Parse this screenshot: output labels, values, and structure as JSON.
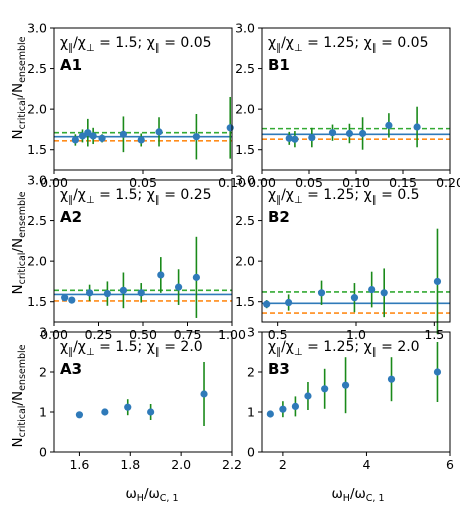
{
  "figure": {
    "ylabel": {
      "main": "N",
      "sub1": "critical",
      "slash": "/N",
      "sub2": "ensemble"
    },
    "xlabel": {
      "main": "ω",
      "sub1": "H",
      "slash": "/ω",
      "sub2": "C, 1"
    }
  },
  "colors": {
    "marker": "#2f7ab9",
    "errorbar": "#1a8a1a",
    "green_line": "#33aa33",
    "orange_line": "#ff8c1a",
    "blue_line": "#2f7ab9"
  },
  "chart_data": [
    {
      "id": "A1",
      "type": "scatter",
      "label": "A1",
      "annotation": {
        "r1": "χ",
        "r1s": "∥",
        "r2": "/χ",
        "r2s": "⊥",
        "r3": " = 1.5; χ",
        "r3s": "∥",
        "r4": " = 0.05"
      },
      "xlim": [
        0,
        0.1
      ],
      "ylim": [
        1.25,
        3.0
      ],
      "xticks": [
        "0.00",
        "0.05",
        "0.10"
      ],
      "xtick_values": [
        0,
        0.05,
        0.1
      ],
      "yticks": [
        "1.5",
        "2.0",
        "2.5",
        "3.0"
      ],
      "ytick_values": [
        1.5,
        2.0,
        2.5,
        3.0
      ],
      "x": [
        0.012,
        0.016,
        0.019,
        0.022,
        0.027,
        0.039,
        0.049,
        0.059,
        0.08,
        0.099
      ],
      "y": [
        1.62,
        1.67,
        1.71,
        1.67,
        1.64,
        1.69,
        1.62,
        1.72,
        1.66,
        1.77
      ],
      "err": [
        0.07,
        0.08,
        0.17,
        0.1,
        0.05,
        0.22,
        0.08,
        0.18,
        0.28,
        0.38
      ],
      "hlines": {
        "green": 1.71,
        "blue": 1.66,
        "orange": 1.61
      }
    },
    {
      "id": "B1",
      "type": "scatter",
      "label": "B1",
      "annotation": {
        "r1": "χ",
        "r1s": "∥",
        "r2": "/χ",
        "r2s": "⊥",
        "r3": " = 1.25; χ",
        "r3s": "∥",
        "r4": " = 0.05"
      },
      "xlim": [
        0,
        0.2
      ],
      "ylim": [
        1.25,
        3.0
      ],
      "xticks": [
        "0.00",
        "0.05",
        "0.10",
        "0.15",
        "0.20"
      ],
      "xtick_values": [
        0,
        0.05,
        0.1,
        0.15,
        0.2
      ],
      "yticks": [
        "1.5",
        "2.0",
        "2.5",
        "3.0"
      ],
      "ytick_values": [
        1.5,
        2.0,
        2.5,
        3.0
      ],
      "x": [
        0.029,
        0.035,
        0.053,
        0.075,
        0.093,
        0.107,
        0.135,
        0.165
      ],
      "y": [
        1.64,
        1.63,
        1.65,
        1.71,
        1.7,
        1.7,
        1.8,
        1.78
      ],
      "err": [
        0.08,
        0.1,
        0.12,
        0.1,
        0.12,
        0.2,
        0.15,
        0.25
      ],
      "hlines": {
        "green": 1.76,
        "blue": 1.69,
        "orange": 1.63
      }
    },
    {
      "id": "A2",
      "type": "scatter",
      "label": "A2",
      "annotation": {
        "r1": "χ",
        "r1s": "∥",
        "r2": "/χ",
        "r2s": "⊥",
        "r3": " = 1.5; χ",
        "r3s": "∥",
        "r4": " = 0.25"
      },
      "xlim": [
        0,
        1.0
      ],
      "ylim": [
        1.25,
        3.0
      ],
      "xticks": [
        "0.00",
        "0.25",
        "0.50",
        "0.75",
        "1.00"
      ],
      "xtick_values": [
        0,
        0.25,
        0.5,
        0.75,
        1.0
      ],
      "yticks": [
        "1.5",
        "2.0",
        "2.5",
        "3.0"
      ],
      "ytick_values": [
        1.5,
        2.0,
        2.5,
        3.0
      ],
      "x": [
        0.06,
        0.1,
        0.2,
        0.3,
        0.39,
        0.49,
        0.6,
        0.7,
        0.8
      ],
      "y": [
        1.55,
        1.52,
        1.61,
        1.6,
        1.64,
        1.61,
        1.83,
        1.68,
        1.8
      ],
      "err": [
        0.03,
        0.02,
        0.1,
        0.15,
        0.22,
        0.12,
        0.22,
        0.22,
        0.5
      ],
      "hlines": {
        "green": 1.64,
        "blue": 1.59,
        "orange": 1.51
      }
    },
    {
      "id": "B2",
      "type": "scatter",
      "label": "B2",
      "annotation": {
        "r1": "χ",
        "r1s": "∥",
        "r2": "/χ",
        "r2s": "⊥",
        "r3": " = 1.25; χ",
        "r3s": "∥",
        "r4": " = 0.5"
      },
      "xlim": [
        0.4,
        1.6
      ],
      "ylim": [
        1.25,
        3.0
      ],
      "xticks": [
        "0.5",
        "1.0",
        "1.5"
      ],
      "xtick_values": [
        0.5,
        1.0,
        1.5
      ],
      "yticks": [
        "1.5",
        "2.0",
        "2.5",
        "3.0"
      ],
      "ytick_values": [
        1.5,
        2.0,
        2.5,
        3.0
      ],
      "x": [
        0.43,
        0.57,
        0.78,
        0.99,
        1.1,
        1.18,
        1.52
      ],
      "y": [
        1.47,
        1.49,
        1.61,
        1.55,
        1.65,
        1.61,
        1.75
      ],
      "err": [
        0.05,
        0.1,
        0.15,
        0.18,
        0.22,
        0.3,
        0.65
      ],
      "hlines": {
        "green": 1.62,
        "blue": 1.48,
        "orange": 1.36
      }
    },
    {
      "id": "A3",
      "type": "scatter",
      "label": "A3",
      "annotation": {
        "r1": "χ",
        "r1s": "∥",
        "r2": "/χ",
        "r2s": "⊥",
        "r3": " = 1.5; χ",
        "r3s": "∥",
        "r4": " = 2.0"
      },
      "xlim": [
        1.5,
        2.2
      ],
      "ylim": [
        0,
        3.0
      ],
      "xticks": [
        "1.6",
        "1.8",
        "2.0",
        "2.2"
      ],
      "xtick_values": [
        1.6,
        1.8,
        2.0,
        2.2
      ],
      "yticks": [
        "0",
        "1",
        "2",
        "3"
      ],
      "ytick_values": [
        0,
        1,
        2,
        3
      ],
      "x": [
        1.6,
        1.7,
        1.79,
        1.88,
        2.09
      ],
      "y": [
        0.93,
        1.0,
        1.12,
        1.0,
        1.45
      ],
      "err": [
        0.0,
        0.0,
        0.2,
        0.2,
        0.8
      ],
      "hlines": null
    },
    {
      "id": "B3",
      "type": "scatter",
      "label": "B3",
      "annotation": {
        "r1": "χ",
        "r1s": "∥",
        "r2": "/χ",
        "r2s": "⊥",
        "r3": " = 1.25; χ",
        "r3s": "∥",
        "r4": " = 2.0"
      },
      "xlim": [
        1.5,
        6.0
      ],
      "ylim": [
        0,
        3.0
      ],
      "xticks": [
        "2",
        "4",
        "6"
      ],
      "xtick_values": [
        2,
        4,
        6
      ],
      "yticks": [
        "0",
        "1",
        "2",
        "3"
      ],
      "ytick_values": [
        0,
        1,
        2,
        3
      ],
      "x": [
        1.7,
        2.0,
        2.3,
        2.6,
        3.0,
        3.5,
        4.6,
        5.7
      ],
      "y": [
        0.95,
        1.07,
        1.14,
        1.4,
        1.58,
        1.67,
        1.82,
        2.0
      ],
      "err": [
        0.08,
        0.2,
        0.25,
        0.35,
        0.5,
        0.7,
        0.55,
        0.75
      ],
      "hlines": null
    }
  ]
}
